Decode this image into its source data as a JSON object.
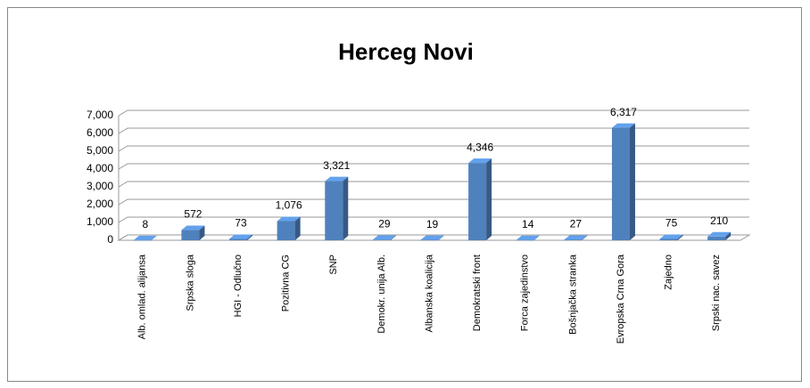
{
  "chart_data": {
    "type": "bar3d",
    "title": "Herceg Novi",
    "categories": [
      "Alb. omlad. alijansa",
      "Srpska sloga",
      "HGI - Odlučno",
      "Pozitivna CG",
      "SNP",
      "Demokr. unija Alb.",
      "Albanska koalicija",
      "Demokratski front",
      "Forca zajedinstvo",
      "Bošnjačka stranka",
      "Evropska Crna Gora",
      "Zajedno",
      "Srpski nac. savez"
    ],
    "values": [
      8,
      572,
      73,
      1076,
      3321,
      29,
      19,
      4346,
      14,
      27,
      6317,
      75,
      210
    ],
    "value_labels": [
      "8",
      "572",
      "73",
      "1,076",
      "3,321",
      "29",
      "19",
      "4,346",
      "14",
      "27",
      "6,317",
      "75",
      "210"
    ],
    "color": "#4f81bd",
    "ylim": [
      0,
      7000
    ],
    "yticks": [
      0,
      {
        "value": 1000,
        "label": "1,000"
      },
      {
        "value": 2000,
        "label": "2,000"
      },
      {
        "value": 3000,
        "label": "3,000"
      },
      {
        "value": 4000,
        "label": "4,000"
      },
      {
        "value": 5000,
        "label": "5,000"
      },
      {
        "value": 6000,
        "label": "6,000"
      },
      {
        "value": 7000,
        "label": "7,000"
      }
    ],
    "grid": true
  }
}
